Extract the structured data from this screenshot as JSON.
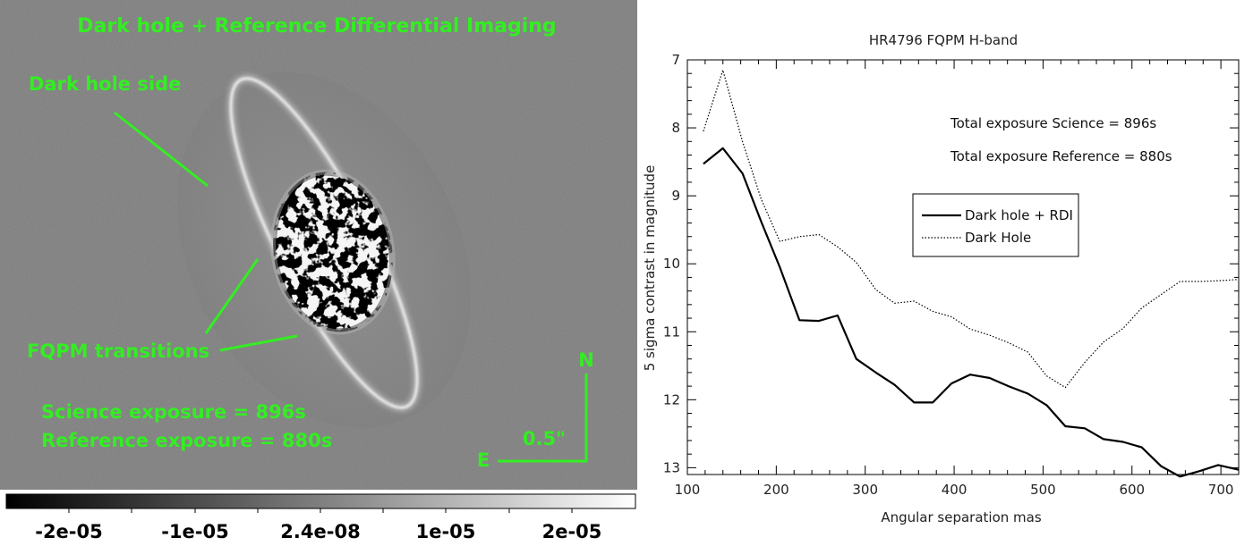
{
  "image_panel": {
    "title": "Dark hole + Reference Differential Imaging",
    "dark_hole_label": "Dark hole side",
    "fqpm_label": "FQPM transitions",
    "science_exposure": "Science exposure = 896s",
    "reference_exposure": "Reference exposure = 880s",
    "north_label": "N",
    "east_label": "E",
    "scale_label": "0.5\"",
    "colorbar_ticks": [
      "-2e-05",
      "-1e-05",
      "2.4e-08",
      "1e-05",
      "2e-05"
    ],
    "annotation_color": "#33ee22"
  },
  "chart_data": {
    "type": "line",
    "title": "HR4796 FQPM H-band",
    "xlabel": "Angular separation mas",
    "ylabel": "5 sigma contrast in magnitude",
    "xlim": [
      100,
      720
    ],
    "ylim": [
      13.1,
      7.0
    ],
    "y_inverted": true,
    "xticks": [
      100,
      200,
      300,
      400,
      500,
      600,
      700
    ],
    "yticks": [
      7,
      8,
      9,
      10,
      11,
      12,
      13
    ],
    "annotations": [
      "Total exposure Science = 896s",
      "Total exposure Reference = 880s"
    ],
    "legend_position": "center-left",
    "series": [
      {
        "name": "Dark hole + RDI",
        "style": "solid",
        "x": [
          118,
          140,
          162,
          183,
          204,
          226,
          248,
          269,
          290,
          312,
          333,
          355,
          376,
          397,
          418,
          440,
          461,
          483,
          504,
          525,
          547,
          568,
          590,
          611,
          633,
          654,
          676,
          697,
          720
        ],
        "y": [
          8.53,
          8.3,
          8.67,
          9.38,
          10.05,
          10.83,
          10.84,
          10.76,
          11.4,
          11.6,
          11.78,
          12.04,
          12.04,
          11.76,
          11.63,
          11.68,
          11.8,
          11.91,
          12.08,
          12.39,
          12.42,
          12.58,
          12.62,
          12.7,
          12.98,
          13.13,
          13.05,
          12.96,
          13.03
        ]
      },
      {
        "name": "Dark Hole",
        "style": "dotted",
        "x": [
          118,
          140,
          162,
          183,
          204,
          226,
          248,
          269,
          290,
          312,
          333,
          355,
          376,
          397,
          418,
          440,
          461,
          483,
          504,
          525,
          547,
          568,
          590,
          611,
          633,
          654,
          676,
          697,
          720
        ],
        "y": [
          8.05,
          7.15,
          8.2,
          9.05,
          9.67,
          9.6,
          9.57,
          9.75,
          9.98,
          10.38,
          10.58,
          10.55,
          10.7,
          10.78,
          10.96,
          11.05,
          11.16,
          11.3,
          11.65,
          11.82,
          11.45,
          11.15,
          10.95,
          10.65,
          10.45,
          10.26,
          10.26,
          10.25,
          10.23
        ]
      }
    ]
  }
}
